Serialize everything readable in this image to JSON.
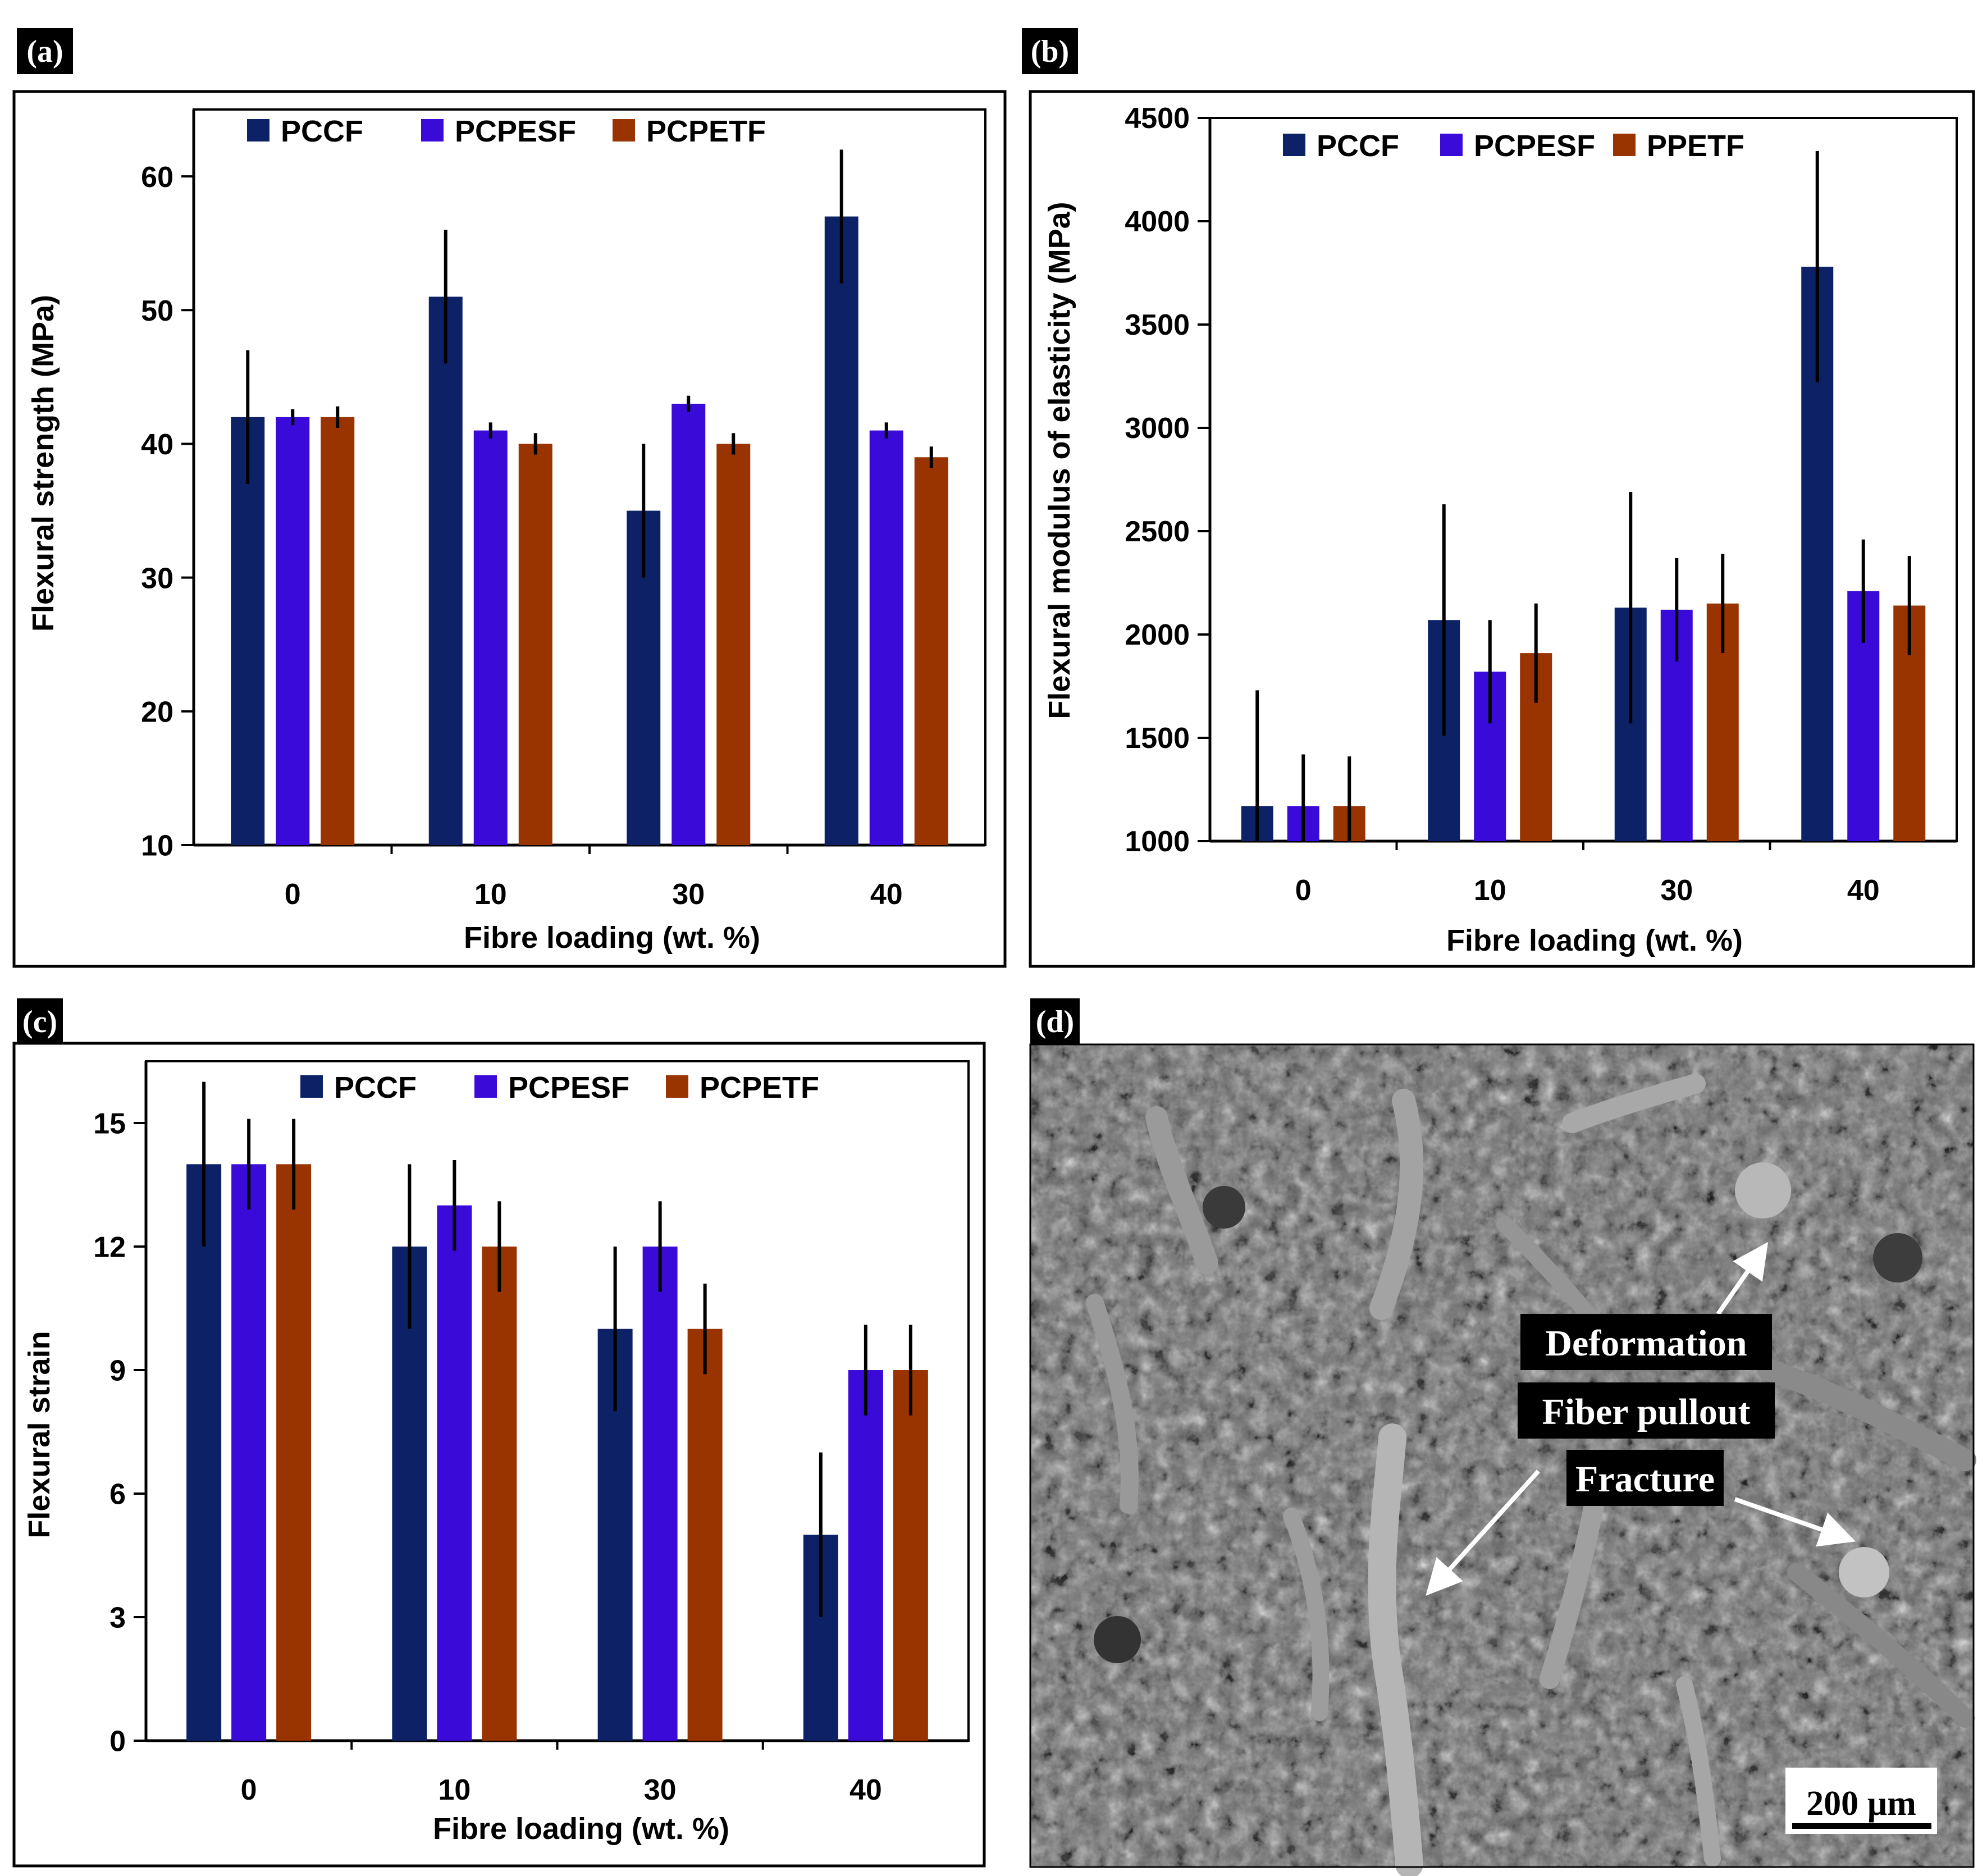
{
  "colors": {
    "pccf": "#0d2266",
    "pcpesf": "#3a0ad8",
    "pcpetf": "#993300",
    "frame": "#000000",
    "sem_background": "#6b6b6b"
  },
  "chart_data": [
    {
      "panel": "(a)",
      "type": "bar",
      "title": "",
      "xlabel": "Fibre loading (wt. %)",
      "ylabel": "Flexural strength (MPa)",
      "ylim": [
        10,
        65
      ],
      "yticks": [
        "10",
        "20",
        "30",
        "40",
        "50",
        "60"
      ],
      "yticks_values": [
        10,
        20,
        30,
        40,
        50,
        60
      ],
      "categories": [
        "0",
        "10",
        "30",
        "40"
      ],
      "series": [
        {
          "name": "PCCF",
          "key": "pccf",
          "values": [
            42,
            51,
            35,
            57
          ],
          "errors": [
            5,
            5,
            5,
            5
          ]
        },
        {
          "name": "PCPESF",
          "key": "pcpesf",
          "values": [
            42,
            41,
            43,
            41
          ],
          "errors": [
            0.6,
            0.6,
            0.6,
            0.6
          ]
        },
        {
          "name": "PCPETF",
          "key": "pcpetf",
          "values": [
            42,
            40,
            40,
            39
          ],
          "errors": [
            0.8,
            0.8,
            0.8,
            0.8
          ]
        }
      ],
      "legend_position": "top"
    },
    {
      "panel": "(b)",
      "type": "bar",
      "title": "",
      "xlabel": "Fibre loading (wt. %)",
      "ylabel": "Flexural modulus of elasticity (MPa)",
      "ylim": [
        1000,
        4500
      ],
      "yticks": [
        "1000",
        "1500",
        "2000",
        "2500",
        "3000",
        "3500",
        "4000",
        "4500"
      ],
      "yticks_values": [
        1000,
        1500,
        2000,
        2500,
        3000,
        3500,
        4000,
        4500
      ],
      "categories": [
        "0",
        "10",
        "30",
        "40"
      ],
      "series": [
        {
          "name": "PCCF",
          "key": "pccf",
          "values": [
            1170,
            2070,
            2130,
            3780
          ],
          "errors": [
            560,
            560,
            560,
            560
          ]
        },
        {
          "name": "PCPESF",
          "key": "pcpesf",
          "values": [
            1170,
            1820,
            2120,
            2210
          ],
          "errors": [
            250,
            250,
            250,
            250
          ]
        },
        {
          "name": "PPETF",
          "key": "pcpetf",
          "values": [
            1170,
            1910,
            2150,
            2140
          ],
          "errors": [
            240,
            240,
            240,
            240
          ]
        }
      ],
      "legend_position": "top"
    },
    {
      "panel": "(c)",
      "type": "bar",
      "title": "",
      "xlabel": "Fibre loading (wt. %)",
      "ylabel": "Flexural strain",
      "ylim": [
        0,
        16.5
      ],
      "yticks": [
        "0",
        "3",
        "6",
        "9",
        "12",
        "15"
      ],
      "yticks_values": [
        0,
        3,
        6,
        9,
        12,
        15
      ],
      "categories": [
        "0",
        "10",
        "30",
        "40"
      ],
      "series": [
        {
          "name": "PCCF",
          "key": "pccf",
          "values": [
            14,
            12,
            10,
            5
          ],
          "errors": [
            2,
            2,
            2,
            2
          ]
        },
        {
          "name": "PCPESF",
          "key": "pcpesf",
          "values": [
            14,
            13,
            12,
            9
          ],
          "errors": [
            1.1,
            1.1,
            1.1,
            1.1
          ]
        },
        {
          "name": "PCPETF",
          "key": "pcpetf",
          "values": [
            14,
            12,
            10,
            9
          ],
          "errors": [
            1.1,
            1.1,
            1.1,
            1.1
          ]
        }
      ],
      "legend_position": "top"
    }
  ],
  "sem_panel": {
    "panel": "(d)",
    "labels": [
      "Deformation",
      "Fiber pullout",
      "Fracture"
    ],
    "scale_bar": "200 µm"
  }
}
